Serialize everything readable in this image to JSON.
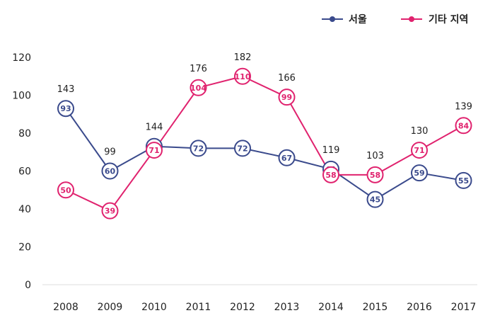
{
  "chart_data": {
    "type": "line",
    "title": "",
    "xlabel": "",
    "ylabel": "",
    "categories": [
      "2008",
      "2009",
      "2010",
      "2011",
      "2012",
      "2013",
      "2014",
      "2015",
      "2016",
      "2017"
    ],
    "ylim": [
      0,
      120
    ],
    "yticks": [
      0,
      20,
      40,
      60,
      80,
      100,
      120
    ],
    "grid": false,
    "legend_position": "top-right",
    "series": [
      {
        "name": "서울",
        "color": "#3a4a8c",
        "values": [
          93,
          60,
          73,
          72,
          72,
          67,
          61,
          45,
          59,
          55
        ]
      },
      {
        "name": "기타 지역",
        "color": "#e0226e",
        "values": [
          50,
          39,
          71,
          104,
          110,
          99,
          58,
          58,
          71,
          84
        ]
      }
    ],
    "totals": [
      "143",
      "99",
      "144",
      "176",
      "182",
      "166",
      "119",
      "103",
      "130",
      "139"
    ]
  }
}
